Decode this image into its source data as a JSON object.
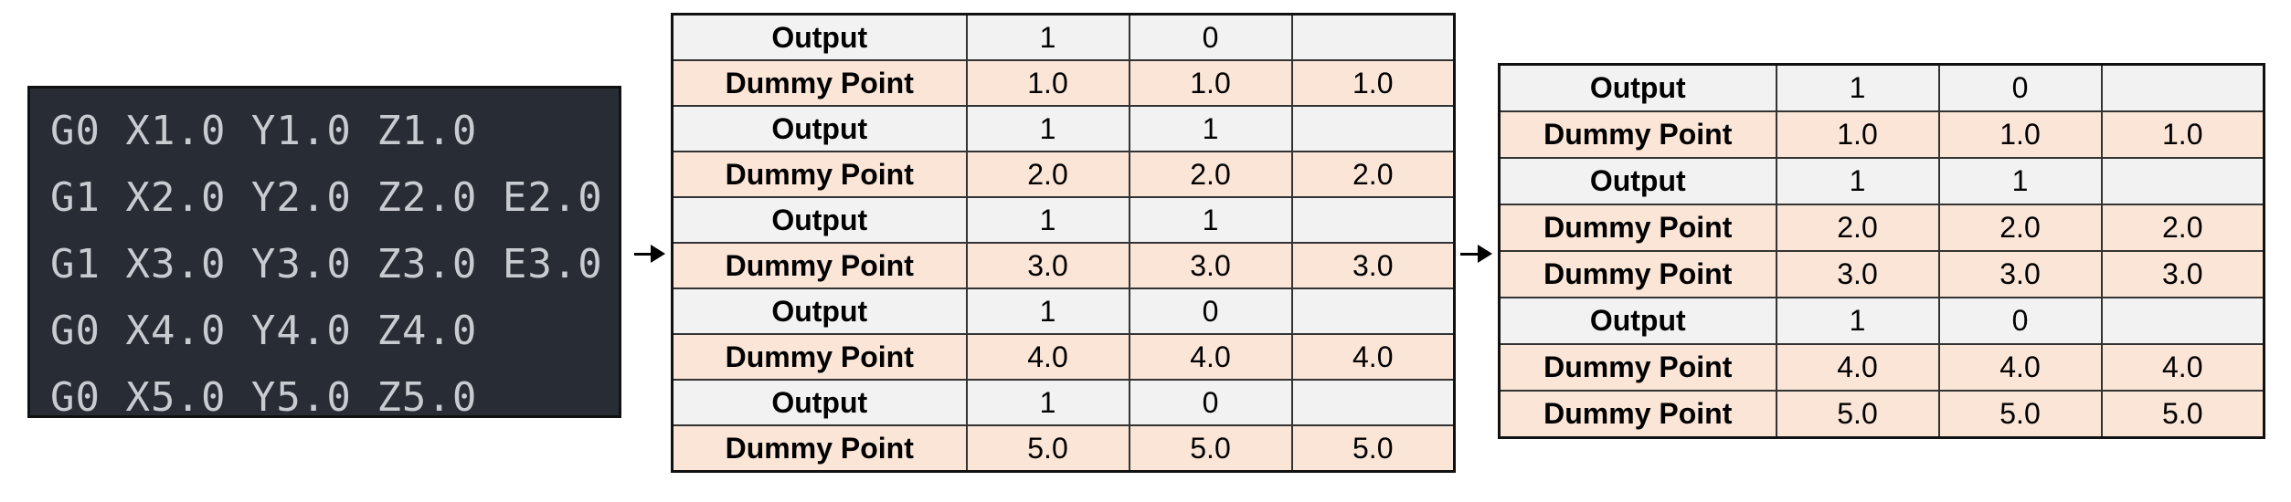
{
  "gcode": [
    "G0 X1.0 Y1.0 Z1.0",
    "G1 X2.0 Y2.0 Z2.0 E2.0",
    "G1 X3.0 Y3.0 Z3.0 E3.0",
    "G0 X4.0 Y4.0 Z4.0",
    "G0 X5.0 Y5.0 Z5.0"
  ],
  "table_middle": [
    [
      "Output",
      "1",
      "0",
      ""
    ],
    [
      "Dummy Point",
      "1.0",
      "1.0",
      "1.0"
    ],
    [
      "Output",
      "1",
      "1",
      ""
    ],
    [
      "Dummy Point",
      "2.0",
      "2.0",
      "2.0"
    ],
    [
      "Output",
      "1",
      "1",
      ""
    ],
    [
      "Dummy Point",
      "3.0",
      "3.0",
      "3.0"
    ],
    [
      "Output",
      "1",
      "0",
      ""
    ],
    [
      "Dummy Point",
      "4.0",
      "4.0",
      "4.0"
    ],
    [
      "Output",
      "1",
      "0",
      ""
    ],
    [
      "Dummy Point",
      "5.0",
      "5.0",
      "5.0"
    ]
  ],
  "table_right": [
    [
      "Output",
      "1",
      "0",
      ""
    ],
    [
      "Dummy Point",
      "1.0",
      "1.0",
      "1.0"
    ],
    [
      "Output",
      "1",
      "1",
      ""
    ],
    [
      "Dummy Point",
      "2.0",
      "2.0",
      "2.0"
    ],
    [
      "Dummy Point",
      "3.0",
      "3.0",
      "3.0"
    ],
    [
      "Output",
      "1",
      "0",
      ""
    ],
    [
      "Dummy Point",
      "4.0",
      "4.0",
      "4.0"
    ],
    [
      "Dummy Point",
      "5.0",
      "5.0",
      "5.0"
    ]
  ],
  "colors": {
    "code_background": "#282c34",
    "code_text": "#c8ccd1",
    "output_row": "#f2f2f2",
    "dummy_point_row": "#fbe5d6"
  }
}
